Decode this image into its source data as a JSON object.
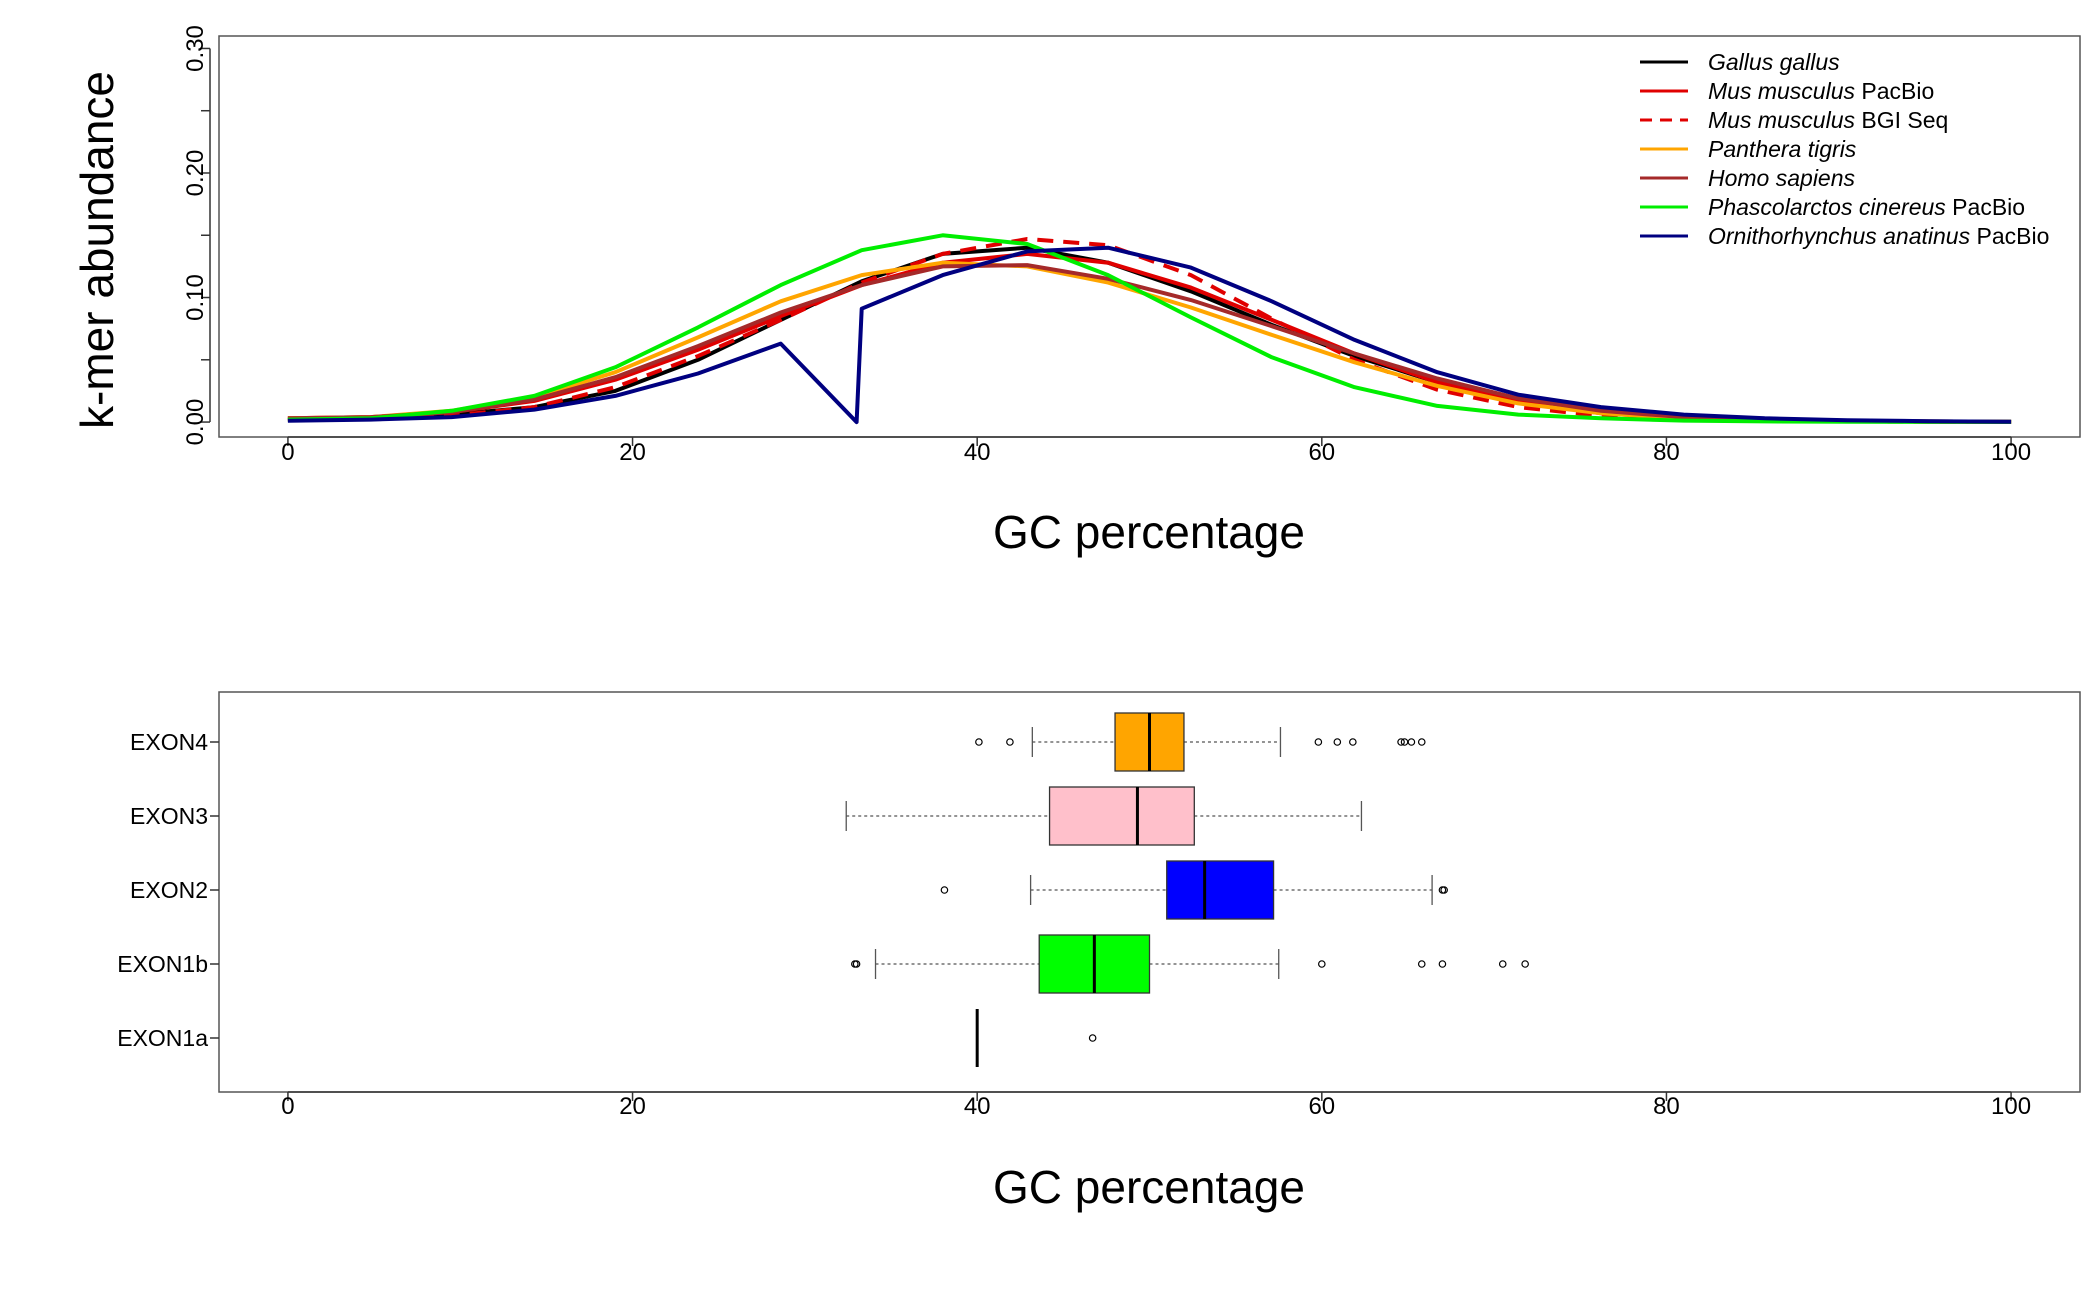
{
  "chart_data": [
    {
      "type": "line",
      "title": "",
      "xlabel": "GC percentage",
      "ylabel": "k-mer abundance",
      "xlim": [
        -4,
        104
      ],
      "ylim": [
        -0.012,
        0.31
      ],
      "x_ticks": [
        0,
        20,
        40,
        60,
        80,
        100
      ],
      "y_ticks": [
        0.0,
        0.1,
        0.2,
        0.3
      ],
      "y_tick_labels": [
        "0.00",
        "0.10",
        "0.20",
        "0.30"
      ],
      "legend_position": "top-right",
      "grid": false,
      "series": [
        {
          "name_italic": "Gallus gallus",
          "name_suffix": "",
          "color": "#000000",
          "dashed": false,
          "x": [
            0,
            4.8,
            9.5,
            14.3,
            19,
            23.8,
            28.6,
            33.3,
            38,
            42.9,
            47.6,
            52.4,
            57.1,
            61.9,
            66.7,
            71.4,
            76.2,
            81,
            85.7,
            90.5,
            95.2,
            100
          ],
          "y": [
            0.002,
            0.003,
            0.006,
            0.012,
            0.025,
            0.05,
            0.082,
            0.113,
            0.135,
            0.14,
            0.128,
            0.105,
            0.078,
            0.053,
            0.032,
            0.017,
            0.008,
            0.004,
            0.002,
            0.001,
            0.0005,
            0.0002
          ]
        },
        {
          "name_italic": "Mus musculus",
          "name_suffix": " PacBio",
          "color": "#e00000",
          "dashed": false,
          "x": [
            0,
            4.8,
            9.5,
            14.3,
            19,
            23.8,
            28.6,
            33.3,
            38,
            42.9,
            47.6,
            52.4,
            57.1,
            61.9,
            66.7,
            71.4,
            76.2,
            81,
            85.7,
            90.5,
            95.2,
            100
          ],
          "y": [
            0.003,
            0.004,
            0.008,
            0.017,
            0.034,
            0.058,
            0.085,
            0.11,
            0.128,
            0.135,
            0.128,
            0.108,
            0.082,
            0.055,
            0.032,
            0.016,
            0.007,
            0.003,
            0.0015,
            0.0007,
            0.0003,
            0.0001
          ]
        },
        {
          "name_italic": "Mus musculus",
          "name_suffix": " BGI Seq",
          "color": "#e00000",
          "dashed": true,
          "x": [
            0,
            4.8,
            9.5,
            14.3,
            19,
            23.8,
            28.6,
            33.3,
            38,
            42.9,
            47.6,
            52.4,
            57.1,
            61.9,
            66.7,
            71.4,
            76.2,
            81,
            85.7,
            90.5,
            95.2,
            100
          ],
          "y": [
            0.002,
            0.003,
            0.005,
            0.012,
            0.028,
            0.053,
            0.082,
            0.112,
            0.135,
            0.147,
            0.142,
            0.118,
            0.083,
            0.05,
            0.026,
            0.012,
            0.005,
            0.002,
            0.001,
            0.0005,
            0.0002,
            0.0001
          ]
        },
        {
          "name_italic": "Panthera tigris",
          "name_suffix": "",
          "color": "#ffa500",
          "dashed": false,
          "x": [
            0,
            4.8,
            9.5,
            14.3,
            19,
            23.8,
            28.6,
            33.3,
            38,
            42.9,
            47.6,
            52.4,
            57.1,
            61.9,
            66.7,
            71.4,
            76.2,
            81,
            85.7,
            90.5,
            95.2,
            100
          ],
          "y": [
            0.003,
            0.004,
            0.009,
            0.02,
            0.04,
            0.068,
            0.097,
            0.118,
            0.128,
            0.125,
            0.112,
            0.092,
            0.07,
            0.048,
            0.029,
            0.015,
            0.007,
            0.003,
            0.0015,
            0.0007,
            0.0003,
            0.0001
          ]
        },
        {
          "name_italic": "Homo sapiens",
          "name_suffix": "",
          "color": "#a52a2a",
          "dashed": false,
          "x": [
            0,
            4.8,
            9.5,
            14.3,
            19,
            23.8,
            28.6,
            33.3,
            38,
            42.9,
            47.6,
            52.4,
            57.1,
            61.9,
            66.7,
            71.4,
            76.2,
            81,
            85.7,
            90.5,
            95.2,
            100
          ],
          "y": [
            0.003,
            0.004,
            0.008,
            0.018,
            0.036,
            0.061,
            0.088,
            0.11,
            0.125,
            0.126,
            0.115,
            0.098,
            0.077,
            0.055,
            0.035,
            0.019,
            0.009,
            0.004,
            0.002,
            0.001,
            0.0005,
            0.0002
          ]
        },
        {
          "name_italic": "Phascolarctos cinereus",
          "name_suffix": " PacBio",
          "color": "#00ee00",
          "dashed": false,
          "x": [
            0,
            4.8,
            9.5,
            14.3,
            19,
            23.8,
            28.6,
            33.3,
            38,
            42.9,
            47.6,
            52.4,
            57.1,
            61.9,
            66.7,
            71.4,
            76.2,
            81,
            85.7,
            90.5,
            95.2,
            100
          ],
          "y": [
            0.002,
            0.003,
            0.009,
            0.021,
            0.044,
            0.076,
            0.11,
            0.138,
            0.15,
            0.143,
            0.118,
            0.084,
            0.052,
            0.028,
            0.013,
            0.006,
            0.003,
            0.0012,
            0.0005,
            0.0002,
            0.0001,
            0.0001
          ]
        },
        {
          "name_italic": "Ornithorhynchus anatinus",
          "name_suffix": " PacBio",
          "color": "#000080",
          "dashed": false,
          "x": [
            0,
            4.8,
            9.5,
            14.3,
            19,
            23.8,
            28.6,
            33,
            33.3,
            38,
            42.9,
            47.6,
            52.4,
            57.1,
            61.9,
            66.7,
            71.4,
            76.2,
            81,
            85.7,
            90.5,
            95.2,
            100
          ],
          "y": [
            0.001,
            0.002,
            0.004,
            0.01,
            0.021,
            0.039,
            0.063,
            0.0,
            0.091,
            0.118,
            0.137,
            0.14,
            0.124,
            0.097,
            0.066,
            0.04,
            0.022,
            0.012,
            0.006,
            0.003,
            0.0015,
            0.0007,
            0.0003
          ]
        }
      ]
    },
    {
      "type": "boxplot",
      "title": "",
      "xlabel": "GC percentage",
      "ylabel": "",
      "xlim": [
        -4,
        104
      ],
      "x_ticks": [
        0,
        20,
        40,
        60,
        80,
        100
      ],
      "grid": false,
      "categories": [
        "EXON1a",
        "EXON1b",
        "EXON2",
        "EXON3",
        "EXON4"
      ],
      "boxes": [
        {
          "name": "EXON1a",
          "color": "#ffffff",
          "whisker_low": 40.0,
          "q1": 40.0,
          "median": 40.0,
          "q3": 40.0,
          "whisker_high": 40.0,
          "outliers": [
            46.7
          ]
        },
        {
          "name": "EXON1b",
          "color": "#00ff00",
          "whisker_low": 34.1,
          "q1": 43.6,
          "median": 46.8,
          "q3": 50.0,
          "whisker_high": 57.5,
          "outliers": [
            32.9,
            33.0,
            60.0,
            65.8,
            67.0,
            70.5,
            71.8
          ]
        },
        {
          "name": "EXON2",
          "color": "#0000ff",
          "whisker_low": 43.1,
          "q1": 51.0,
          "median": 53.2,
          "q3": 57.2,
          "whisker_high": 66.4,
          "outliers": [
            38.1,
            67.0,
            67.1
          ]
        },
        {
          "name": "EXON3",
          "color": "#ffc0cb",
          "whisker_low": 32.4,
          "q1": 44.2,
          "median": 49.3,
          "q3": 52.6,
          "whisker_high": 62.3,
          "outliers": []
        },
        {
          "name": "EXON4",
          "color": "#ffa500",
          "whisker_low": 43.2,
          "q1": 48.0,
          "median": 50.0,
          "q3": 52.0,
          "whisker_high": 57.6,
          "outliers": [
            40.1,
            41.9,
            59.8,
            60.9,
            61.8,
            64.6,
            64.8,
            65.2,
            65.8
          ]
        }
      ]
    }
  ]
}
